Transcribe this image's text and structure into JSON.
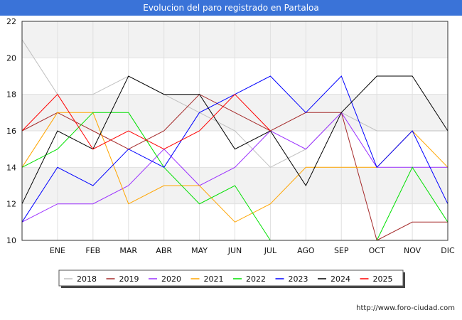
{
  "title": "Evolucion del paro registrado en Partaloa",
  "footer_url": "http://www.foro-ciudad.com",
  "chart_data": {
    "type": "line",
    "categories": [
      "",
      "ENE",
      "FEB",
      "MAR",
      "ABR",
      "MAY",
      "JUN",
      "JUL",
      "AGO",
      "SEP",
      "OCT",
      "NOV",
      "DIC"
    ],
    "ylim": [
      10,
      22
    ],
    "yticks": [
      10,
      12,
      14,
      16,
      18,
      20,
      22
    ],
    "grid": true,
    "legend_position": "bottom",
    "series": [
      {
        "name": "2018",
        "color": "#c0c0c0",
        "values": [
          21,
          18,
          18,
          19,
          18,
          17,
          16,
          14,
          15,
          17,
          16,
          16,
          16
        ]
      },
      {
        "name": "2019",
        "color": "#a52a2a",
        "values": [
          16,
          17,
          16,
          15,
          16,
          18,
          17,
          16,
          17,
          17,
          10,
          11,
          11
        ]
      },
      {
        "name": "2020",
        "color": "#9b30ff",
        "values": [
          11,
          12,
          12,
          13,
          15,
          13,
          14,
          16,
          15,
          17,
          14,
          14,
          14
        ]
      },
      {
        "name": "2021",
        "color": "#ffa500",
        "values": [
          14,
          17,
          17,
          12,
          13,
          13,
          11,
          12,
          14,
          14,
          14,
          16,
          14
        ]
      },
      {
        "name": "2022",
        "color": "#00e000",
        "values": [
          14,
          15,
          17,
          17,
          14,
          12,
          13,
          10,
          null,
          null,
          10,
          14,
          11
        ]
      },
      {
        "name": "2023",
        "color": "#0000ff",
        "values": [
          11,
          14,
          13,
          15,
          14,
          17,
          18,
          19,
          17,
          19,
          14,
          16,
          12
        ]
      },
      {
        "name": "2024",
        "color": "#000000",
        "values": [
          12,
          16,
          15,
          19,
          18,
          18,
          15,
          16,
          13,
          17,
          19,
          19,
          16
        ]
      },
      {
        "name": "2025",
        "color": "#ff0000",
        "values": [
          16,
          18,
          15,
          16,
          15,
          16,
          18,
          16,
          null,
          null,
          null,
          null,
          null
        ]
      }
    ]
  }
}
